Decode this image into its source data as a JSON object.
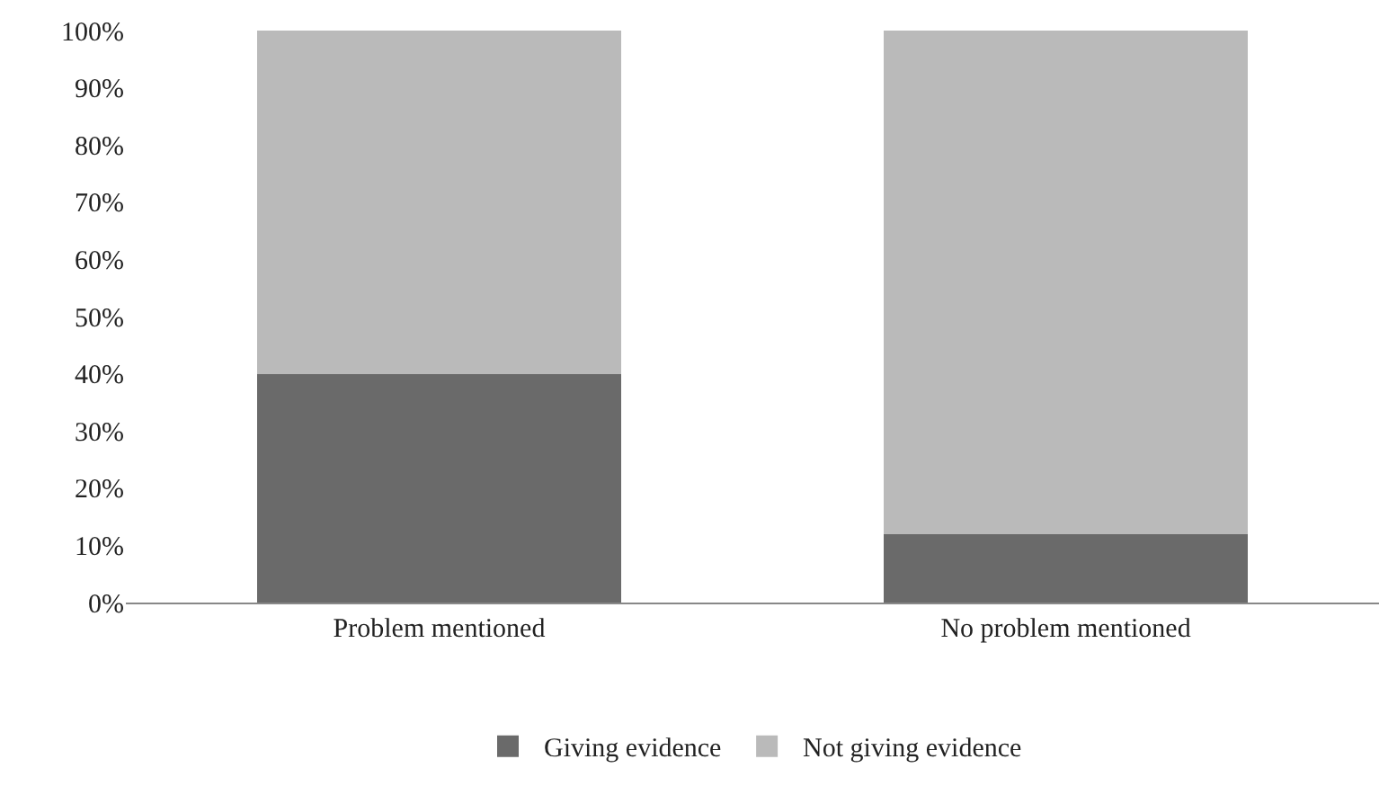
{
  "chart_data": {
    "type": "bar",
    "stacked": true,
    "categories": [
      "Problem mentioned",
      "No problem mentioned"
    ],
    "series": [
      {
        "name": "Giving evidence",
        "color": "#6a6a6a",
        "values": [
          40,
          12
        ]
      },
      {
        "name": "Not giving evidence",
        "color": "#bababa",
        "values": [
          60,
          88
        ]
      }
    ],
    "ylim": [
      0,
      100
    ],
    "yticks": [
      {
        "value": 0,
        "label": "0%"
      },
      {
        "value": 10,
        "label": "10%"
      },
      {
        "value": 20,
        "label": "20%"
      },
      {
        "value": 30,
        "label": "30%"
      },
      {
        "value": 40,
        "label": "40%"
      },
      {
        "value": 50,
        "label": "50%"
      },
      {
        "value": 60,
        "label": "60%"
      },
      {
        "value": 70,
        "label": "70%"
      },
      {
        "value": 80,
        "label": "80%"
      },
      {
        "value": 90,
        "label": "90%"
      },
      {
        "value": 100,
        "label": "100%"
      }
    ],
    "legend": "bottom"
  }
}
